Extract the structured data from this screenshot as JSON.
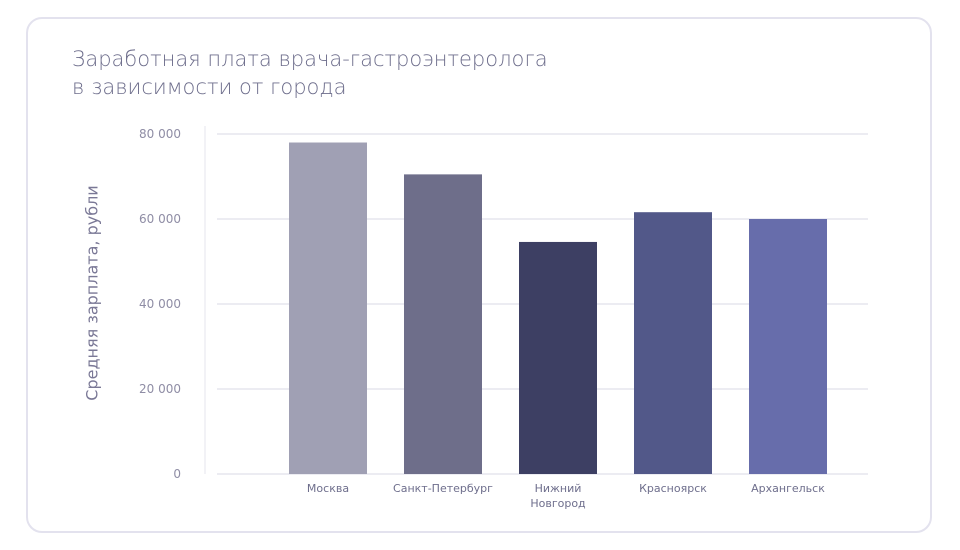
{
  "chart_data": {
    "type": "bar",
    "title_lines": [
      "Заработная плата врача-гастроэнтеролога",
      "в зависимости от города"
    ],
    "ylabel": "Средняя зарплата, рубли",
    "xlabel": "",
    "categories": [
      [
        "Москва"
      ],
      [
        "Санкт-Петербург"
      ],
      [
        "Нижний",
        "Новгород"
      ],
      [
        "Красноярск"
      ],
      [
        "Архангельск"
      ]
    ],
    "values": [
      78000,
      70500,
      54600,
      61600,
      60000
    ],
    "colors": [
      "#a0a0b4",
      "#6e6e8a",
      "#3d3f63",
      "#525889",
      "#676dab"
    ],
    "ylim": [
      0,
      80000
    ],
    "yticks": [
      0,
      20000,
      40000,
      60000,
      80000
    ],
    "ytick_labels": [
      "0",
      "20 000",
      "40 000",
      "60 000",
      "80 000"
    ],
    "grid": true,
    "legend": "none"
  }
}
